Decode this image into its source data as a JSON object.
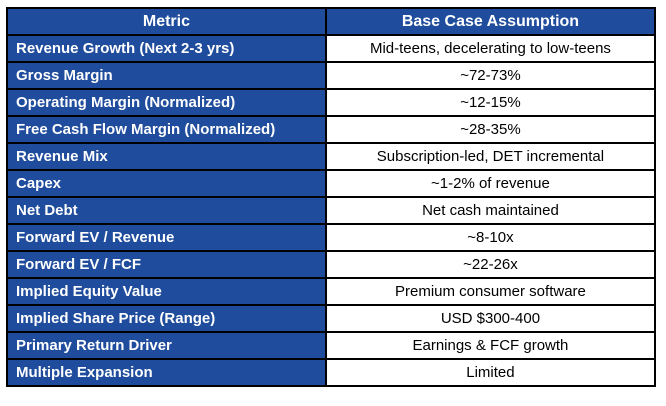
{
  "chart_data": {
    "type": "table",
    "columns": [
      "Metric",
      "Base Case Assumption"
    ],
    "rows": [
      [
        "Revenue Growth (Next 2-3 yrs)",
        "Mid-teens, decelerating to low-teens"
      ],
      [
        "Gross Margin",
        "~72-73%"
      ],
      [
        "Operating Margin (Normalized)",
        "~12-15%"
      ],
      [
        "Free Cash Flow Margin (Normalized)",
        "~28-35%"
      ],
      [
        "Revenue Mix",
        "Subscription-led, DET incremental"
      ],
      [
        "Capex",
        "~1-2% of revenue"
      ],
      [
        "Net Debt",
        "Net cash maintained"
      ],
      [
        "Forward EV / Revenue",
        "~8-10x"
      ],
      [
        "Forward EV / FCF",
        "~22-26x"
      ],
      [
        "Implied Equity Value",
        "Premium consumer software"
      ],
      [
        "Implied Share Price (Range)",
        "USD $300-400"
      ],
      [
        "Primary Return Driver",
        "Earnings & FCF growth"
      ],
      [
        "Multiple Expansion",
        "Limited"
      ]
    ]
  },
  "colors": {
    "header_bg": "#1F4C9C",
    "metric_bg": "#1F4C9C",
    "header_text": "#FFFFFF",
    "cell_bg": "#FFFFFF",
    "cell_text": "#000000",
    "border": "#000000"
  }
}
